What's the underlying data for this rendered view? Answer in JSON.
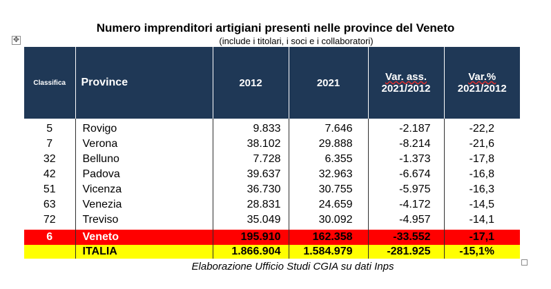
{
  "title": "Numero imprenditori artigiani presenti nelle province del Veneto",
  "subtitle": "(include i titolari, i soci e i collaboratori)",
  "headers": {
    "rank": "Classifica",
    "province": "Province",
    "y2012": "2012",
    "y2021": "2021",
    "var_abs_1": "Var. ass.",
    "var_abs_2": "2021/2012",
    "var_pct_1": "Var.%",
    "var_pct_2": "2021/2012"
  },
  "rows": [
    {
      "rank": "5",
      "province": "Rovigo",
      "y2012": "9.833",
      "y2021": "7.646",
      "var_abs": "-2.187",
      "var_pct": "-22,2"
    },
    {
      "rank": "7",
      "province": "Verona",
      "y2012": "38.102",
      "y2021": "29.888",
      "var_abs": "-8.214",
      "var_pct": "-21,6"
    },
    {
      "rank": "32",
      "province": "Belluno",
      "y2012": "7.728",
      "y2021": "6.355",
      "var_abs": "-1.373",
      "var_pct": "-17,8"
    },
    {
      "rank": "42",
      "province": "Padova",
      "y2012": "39.637",
      "y2021": "32.963",
      "var_abs": "-6.674",
      "var_pct": "-16,8"
    },
    {
      "rank": "51",
      "province": "Vicenza",
      "y2012": "36.730",
      "y2021": "30.755",
      "var_abs": "-5.975",
      "var_pct": "-16,3"
    },
    {
      "rank": "63",
      "province": "Venezia",
      "y2012": "28.831",
      "y2021": "24.659",
      "var_abs": "-4.172",
      "var_pct": "-14,5"
    },
    {
      "rank": "72",
      "province": "Treviso",
      "y2012": "35.049",
      "y2021": "30.092",
      "var_abs": "-4.957",
      "var_pct": "-14,1"
    }
  ],
  "veneto": {
    "rank": "6",
    "province": "Veneto",
    "y2012": "195.910",
    "y2021": "162.358",
    "var_abs": "-33.552",
    "var_pct": "-17,1"
  },
  "italia": {
    "rank": "",
    "province": "ITALIA",
    "y2012": "1.866.904",
    "y2021": "1.584.979",
    "var_abs": "-281.925",
    "var_pct": "-15,1%"
  },
  "source": "Elaborazione Ufficio Studi CGIA su dati Inps",
  "colors": {
    "header_bg": "#1f3856",
    "veneto_bg": "#ff0000",
    "italia_bg": "#ffff00"
  },
  "icons": {
    "move": "move-handle-icon",
    "resize": "resize-handle-icon"
  }
}
